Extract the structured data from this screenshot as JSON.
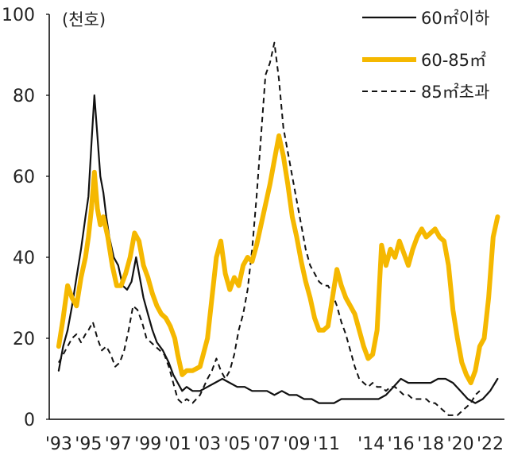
{
  "chart_data": {
    "type": "line",
    "unit_label": "(천호)",
    "ylim": [
      0,
      100
    ],
    "y_ticks": [
      "0",
      "20",
      "40",
      "60",
      "80",
      "100"
    ],
    "x_tick_labels": [
      "'93",
      "'95",
      "'97",
      "'99",
      "'01",
      "'03",
      "'05",
      "'07",
      "'09",
      "'11",
      "'14",
      "'16",
      "'18",
      "'20",
      "'22"
    ],
    "x_tick_years": [
      1993,
      1995,
      1997,
      1999,
      2001,
      2003,
      2005,
      2007,
      2009,
      2011,
      2014,
      2016,
      2018,
      2020,
      2022
    ],
    "x_range": [
      1992.9,
      2022.8
    ],
    "grid": false,
    "legend_position": "top-right",
    "series": [
      {
        "name": "60㎡이하",
        "style": "solid",
        "color": "#111111",
        "points": [
          [
            1993.0,
            12
          ],
          [
            1993.3,
            18
          ],
          [
            1993.6,
            22
          ],
          [
            1993.9,
            28
          ],
          [
            1994.2,
            35
          ],
          [
            1994.5,
            42
          ],
          [
            1994.8,
            50
          ],
          [
            1995.0,
            55
          ],
          [
            1995.2,
            68
          ],
          [
            1995.4,
            80
          ],
          [
            1995.6,
            70
          ],
          [
            1995.8,
            60
          ],
          [
            1996.0,
            56
          ],
          [
            1996.2,
            50
          ],
          [
            1996.4,
            45
          ],
          [
            1996.7,
            40
          ],
          [
            1997.0,
            38
          ],
          [
            1997.3,
            33
          ],
          [
            1997.6,
            32
          ],
          [
            1997.9,
            34
          ],
          [
            1998.2,
            40
          ],
          [
            1998.4,
            36
          ],
          [
            1998.7,
            30
          ],
          [
            1999.0,
            26
          ],
          [
            1999.3,
            22
          ],
          [
            1999.6,
            19
          ],
          [
            2000.0,
            17
          ],
          [
            2000.4,
            14
          ],
          [
            2000.7,
            11
          ],
          [
            2001.0,
            9
          ],
          [
            2001.3,
            7
          ],
          [
            2001.6,
            8
          ],
          [
            2002.0,
            7
          ],
          [
            2002.5,
            7
          ],
          [
            2003.0,
            8
          ],
          [
            2003.5,
            9
          ],
          [
            2004.0,
            10
          ],
          [
            2004.5,
            9
          ],
          [
            2005.0,
            8
          ],
          [
            2005.5,
            8
          ],
          [
            2006.0,
            7
          ],
          [
            2006.5,
            7
          ],
          [
            2007.0,
            7
          ],
          [
            2007.5,
            6
          ],
          [
            2008.0,
            7
          ],
          [
            2008.5,
            6
          ],
          [
            2009.0,
            6
          ],
          [
            2009.5,
            5
          ],
          [
            2010.0,
            5
          ],
          [
            2010.5,
            4
          ],
          [
            2011.0,
            4
          ],
          [
            2011.5,
            4
          ],
          [
            2012.0,
            5
          ],
          [
            2012.5,
            5
          ],
          [
            2013.0,
            5
          ],
          [
            2013.5,
            5
          ],
          [
            2014.0,
            5
          ],
          [
            2014.5,
            5
          ],
          [
            2015.0,
            6
          ],
          [
            2015.5,
            8
          ],
          [
            2016.0,
            10
          ],
          [
            2016.5,
            9
          ],
          [
            2017.0,
            9
          ],
          [
            2017.5,
            9
          ],
          [
            2018.0,
            9
          ],
          [
            2018.5,
            10
          ],
          [
            2019.0,
            10
          ],
          [
            2019.5,
            9
          ],
          [
            2020.0,
            7
          ],
          [
            2020.5,
            5
          ],
          [
            2021.0,
            4
          ],
          [
            2021.5,
            5
          ],
          [
            2022.0,
            7
          ],
          [
            2022.5,
            10
          ]
        ]
      },
      {
        "name": "60-85㎡",
        "style": "thick",
        "color": "#F5B800",
        "points": [
          [
            1993.0,
            18
          ],
          [
            1993.3,
            25
          ],
          [
            1993.6,
            33
          ],
          [
            1993.9,
            30
          ],
          [
            1994.2,
            28
          ],
          [
            1994.5,
            35
          ],
          [
            1994.8,
            40
          ],
          [
            1995.0,
            45
          ],
          [
            1995.2,
            52
          ],
          [
            1995.4,
            61
          ],
          [
            1995.6,
            52
          ],
          [
            1995.8,
            48
          ],
          [
            1996.0,
            50
          ],
          [
            1996.3,
            45
          ],
          [
            1996.6,
            38
          ],
          [
            1996.9,
            33
          ],
          [
            1997.2,
            33
          ],
          [
            1997.5,
            36
          ],
          [
            1997.8,
            40
          ],
          [
            1998.1,
            46
          ],
          [
            1998.4,
            44
          ],
          [
            1998.7,
            38
          ],
          [
            1999.0,
            35
          ],
          [
            1999.3,
            31
          ],
          [
            1999.6,
            28
          ],
          [
            1999.9,
            26
          ],
          [
            2000.2,
            25
          ],
          [
            2000.5,
            23
          ],
          [
            2000.8,
            20
          ],
          [
            2001.0,
            16
          ],
          [
            2001.3,
            11
          ],
          [
            2001.6,
            12
          ],
          [
            2002.0,
            12
          ],
          [
            2002.5,
            13
          ],
          [
            2003.0,
            20
          ],
          [
            2003.3,
            30
          ],
          [
            2003.6,
            40
          ],
          [
            2003.9,
            44
          ],
          [
            2004.2,
            36
          ],
          [
            2004.5,
            32
          ],
          [
            2004.8,
            35
          ],
          [
            2005.1,
            33
          ],
          [
            2005.4,
            38
          ],
          [
            2005.7,
            40
          ],
          [
            2006.0,
            39
          ],
          [
            2006.3,
            43
          ],
          [
            2006.6,
            48
          ],
          [
            2006.9,
            53
          ],
          [
            2007.2,
            58
          ],
          [
            2007.5,
            64
          ],
          [
            2007.8,
            70
          ],
          [
            2008.1,
            65
          ],
          [
            2008.4,
            58
          ],
          [
            2008.7,
            50
          ],
          [
            2009.0,
            45
          ],
          [
            2009.3,
            39
          ],
          [
            2009.6,
            34
          ],
          [
            2009.9,
            30
          ],
          [
            2010.2,
            25
          ],
          [
            2010.5,
            22
          ],
          [
            2010.8,
            22
          ],
          [
            2011.1,
            23
          ],
          [
            2011.4,
            30
          ],
          [
            2011.7,
            37
          ],
          [
            2012.0,
            33
          ],
          [
            2012.3,
            30
          ],
          [
            2012.6,
            28
          ],
          [
            2012.9,
            26
          ],
          [
            2013.2,
            22
          ],
          [
            2013.5,
            18
          ],
          [
            2013.8,
            15
          ],
          [
            2014.1,
            16
          ],
          [
            2014.4,
            22
          ],
          [
            2014.7,
            43
          ],
          [
            2015.0,
            38
          ],
          [
            2015.3,
            42
          ],
          [
            2015.6,
            40
          ],
          [
            2015.9,
            44
          ],
          [
            2016.2,
            41
          ],
          [
            2016.5,
            38
          ],
          [
            2016.8,
            42
          ],
          [
            2017.1,
            45
          ],
          [
            2017.4,
            47
          ],
          [
            2017.7,
            45
          ],
          [
            2018.0,
            46
          ],
          [
            2018.3,
            47
          ],
          [
            2018.6,
            45
          ],
          [
            2018.9,
            44
          ],
          [
            2019.2,
            38
          ],
          [
            2019.5,
            27
          ],
          [
            2019.8,
            20
          ],
          [
            2020.1,
            14
          ],
          [
            2020.4,
            11
          ],
          [
            2020.7,
            9
          ],
          [
            2021.0,
            12
          ],
          [
            2021.3,
            18
          ],
          [
            2021.6,
            20
          ],
          [
            2021.9,
            30
          ],
          [
            2022.2,
            45
          ],
          [
            2022.5,
            50
          ]
        ]
      },
      {
        "name": "85㎡초과",
        "style": "dashed",
        "color": "#111111",
        "points": [
          [
            1993.0,
            14
          ],
          [
            1993.3,
            16
          ],
          [
            1993.6,
            18
          ],
          [
            1993.9,
            20
          ],
          [
            1994.2,
            21
          ],
          [
            1994.5,
            19
          ],
          [
            1994.8,
            21
          ],
          [
            1995.0,
            22
          ],
          [
            1995.3,
            24
          ],
          [
            1995.6,
            20
          ],
          [
            1995.9,
            17
          ],
          [
            1996.2,
            18
          ],
          [
            1996.5,
            16
          ],
          [
            1996.8,
            13
          ],
          [
            1997.1,
            14
          ],
          [
            1997.4,
            17
          ],
          [
            1997.7,
            22
          ],
          [
            1998.0,
            28
          ],
          [
            1998.3,
            27
          ],
          [
            1998.6,
            24
          ],
          [
            1998.9,
            20
          ],
          [
            1999.2,
            19
          ],
          [
            1999.5,
            18
          ],
          [
            1999.8,
            17
          ],
          [
            2000.1,
            16
          ],
          [
            2000.4,
            13
          ],
          [
            2000.7,
            9
          ],
          [
            2001.0,
            5
          ],
          [
            2001.3,
            4
          ],
          [
            2001.6,
            5
          ],
          [
            2002.0,
            4
          ],
          [
            2002.5,
            6
          ],
          [
            2003.0,
            10
          ],
          [
            2003.3,
            12
          ],
          [
            2003.6,
            15
          ],
          [
            2003.9,
            12
          ],
          [
            2004.2,
            10
          ],
          [
            2004.5,
            12
          ],
          [
            2004.8,
            16
          ],
          [
            2005.1,
            22
          ],
          [
            2005.4,
            26
          ],
          [
            2005.7,
            32
          ],
          [
            2006.0,
            42
          ],
          [
            2006.3,
            55
          ],
          [
            2006.6,
            70
          ],
          [
            2006.9,
            85
          ],
          [
            2007.2,
            88
          ],
          [
            2007.5,
            93
          ],
          [
            2007.8,
            84
          ],
          [
            2008.1,
            72
          ],
          [
            2008.4,
            66
          ],
          [
            2008.7,
            60
          ],
          [
            2009.0,
            54
          ],
          [
            2009.3,
            48
          ],
          [
            2009.6,
            42
          ],
          [
            2009.9,
            38
          ],
          [
            2010.2,
            36
          ],
          [
            2010.5,
            34
          ],
          [
            2010.8,
            33
          ],
          [
            2011.1,
            33
          ],
          [
            2011.4,
            31
          ],
          [
            2011.7,
            28
          ],
          [
            2012.0,
            24
          ],
          [
            2012.3,
            21
          ],
          [
            2012.6,
            17
          ],
          [
            2012.9,
            13
          ],
          [
            2013.2,
            10
          ],
          [
            2013.5,
            9
          ],
          [
            2013.8,
            8
          ],
          [
            2014.1,
            9
          ],
          [
            2014.4,
            8
          ],
          [
            2014.7,
            8
          ],
          [
            2015.0,
            7
          ],
          [
            2015.3,
            8
          ],
          [
            2015.6,
            8
          ],
          [
            2015.9,
            7
          ],
          [
            2016.2,
            6
          ],
          [
            2016.5,
            6
          ],
          [
            2016.8,
            5
          ],
          [
            2017.1,
            5
          ],
          [
            2017.4,
            5
          ],
          [
            2017.7,
            5
          ],
          [
            2018.0,
            4
          ],
          [
            2018.3,
            4
          ],
          [
            2018.6,
            3
          ],
          [
            2018.9,
            2
          ],
          [
            2019.2,
            1
          ],
          [
            2019.5,
            1
          ],
          [
            2019.8,
            1
          ],
          [
            2020.1,
            2
          ],
          [
            2020.4,
            3
          ],
          [
            2020.7,
            4
          ],
          [
            2021.0,
            6
          ],
          [
            2021.3,
            7
          ]
        ]
      }
    ]
  }
}
